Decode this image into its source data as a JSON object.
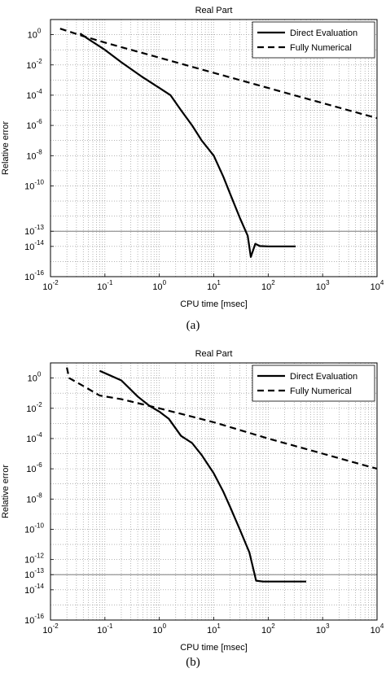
{
  "chart_data": [
    {
      "type": "line",
      "title": "Real Part",
      "xlabel": "CPU time [msec]",
      "ylabel": "Relative error",
      "xscale": "log",
      "yscale": "log",
      "xlim": [
        0.01,
        10000
      ],
      "ylim": [
        1e-16,
        10
      ],
      "grid": true,
      "legend_position": "top-right",
      "x_ticks": [
        {
          "value": 0.01,
          "base": "10",
          "exp": "-2"
        },
        {
          "value": 0.1,
          "base": "10",
          "exp": "-1"
        },
        {
          "value": 1,
          "base": "10",
          "exp": "0"
        },
        {
          "value": 10,
          "base": "10",
          "exp": "1"
        },
        {
          "value": 100,
          "base": "10",
          "exp": "2"
        },
        {
          "value": 1000,
          "base": "10",
          "exp": "3"
        },
        {
          "value": 10000,
          "base": "10",
          "exp": "4"
        }
      ],
      "y_ticks": [
        {
          "value": 1,
          "base": "10",
          "exp": "0"
        },
        {
          "value": 0.01,
          "base": "10",
          "exp": "-2"
        },
        {
          "value": 0.0001,
          "base": "10",
          "exp": "-4"
        },
        {
          "value": 1e-06,
          "base": "10",
          "exp": "-6"
        },
        {
          "value": 1e-08,
          "base": "10",
          "exp": "-8"
        },
        {
          "value": 1e-10,
          "base": "10",
          "exp": "-10"
        },
        {
          "value": 1e-13,
          "base": "10",
          "exp": "-13"
        },
        {
          "value": 1e-14,
          "base": "10",
          "exp": "-14"
        },
        {
          "value": 1e-16,
          "base": "10",
          "exp": "-16"
        }
      ],
      "reference_line": 1e-13,
      "caption": "(a)",
      "series": [
        {
          "name": "Direct Evaluation",
          "style": "solid",
          "points": [
            [
              0.035,
              1.2
            ],
            [
              0.05,
              0.5
            ],
            [
              0.1,
              0.1
            ],
            [
              0.2,
              0.015
            ],
            [
              0.5,
              0.0015
            ],
            [
              1,
              0.0003
            ],
            [
              1.6,
              0.0001
            ],
            [
              2.5,
              1e-05
            ],
            [
              4,
              1e-06
            ],
            [
              6,
              1e-07
            ],
            [
              10,
              1e-08
            ],
            [
              15,
              4e-10
            ],
            [
              20,
              3e-11
            ],
            [
              30,
              8e-13
            ],
            [
              42,
              5e-14
            ],
            [
              48,
              2e-15
            ],
            [
              58,
              1.5e-14
            ],
            [
              70,
              1.05e-14
            ],
            [
              100,
              1e-14
            ],
            [
              150,
              1e-14
            ],
            [
              200,
              1e-14
            ],
            [
              250,
              1e-14
            ],
            [
              320,
              1e-14
            ]
          ]
        },
        {
          "name": "Fully Numerical",
          "style": "dashed",
          "points": [
            [
              0.015,
              2.5
            ],
            [
              0.04,
              0.8
            ],
            [
              0.1,
              0.3
            ],
            [
              1,
              0.03
            ],
            [
              10,
              0.003
            ],
            [
              100,
              0.0003
            ],
            [
              1000,
              3e-05
            ],
            [
              10000,
              3e-06
            ]
          ]
        }
      ]
    },
    {
      "type": "line",
      "title": "Real Part",
      "xlabel": "CPU time [msec]",
      "ylabel": "Relative error",
      "xscale": "log",
      "yscale": "log",
      "xlim": [
        0.01,
        10000
      ],
      "ylim": [
        1e-16,
        10
      ],
      "grid": true,
      "legend_position": "top-right",
      "x_ticks": [
        {
          "value": 0.01,
          "base": "10",
          "exp": "-2"
        },
        {
          "value": 0.1,
          "base": "10",
          "exp": "-1"
        },
        {
          "value": 1,
          "base": "10",
          "exp": "0"
        },
        {
          "value": 10,
          "base": "10",
          "exp": "1"
        },
        {
          "value": 100,
          "base": "10",
          "exp": "2"
        },
        {
          "value": 1000,
          "base": "10",
          "exp": "3"
        },
        {
          "value": 10000,
          "base": "10",
          "exp": "4"
        }
      ],
      "y_ticks": [
        {
          "value": 1,
          "base": "10",
          "exp": "0"
        },
        {
          "value": 0.01,
          "base": "10",
          "exp": "-2"
        },
        {
          "value": 0.0001,
          "base": "10",
          "exp": "-4"
        },
        {
          "value": 1e-06,
          "base": "10",
          "exp": "-6"
        },
        {
          "value": 1e-08,
          "base": "10",
          "exp": "-8"
        },
        {
          "value": 1e-10,
          "base": "10",
          "exp": "-10"
        },
        {
          "value": 1e-12,
          "base": "10",
          "exp": "-12"
        },
        {
          "value": 1e-13,
          "base": "10",
          "exp": "-13"
        },
        {
          "value": 1e-14,
          "base": "10",
          "exp": "-14"
        },
        {
          "value": 1e-16,
          "base": "10",
          "exp": "-16"
        }
      ],
      "reference_line": 1e-13,
      "caption": "(b)",
      "series": [
        {
          "name": "Direct Evaluation",
          "style": "solid",
          "points": [
            [
              0.08,
              3
            ],
            [
              0.2,
              0.7
            ],
            [
              0.4,
              0.06
            ],
            [
              0.65,
              0.015
            ],
            [
              1,
              0.006
            ],
            [
              1.5,
              0.002
            ],
            [
              2.5,
              0.00015
            ],
            [
              4,
              5e-05
            ],
            [
              6,
              8e-06
            ],
            [
              10,
              5e-07
            ],
            [
              15,
              3e-08
            ],
            [
              20,
              3e-09
            ],
            [
              30,
              1e-10
            ],
            [
              45,
              3e-12
            ],
            [
              60,
              4e-14
            ],
            [
              80,
              3.5e-14
            ],
            [
              120,
              3.5e-14
            ],
            [
              200,
              3.5e-14
            ],
            [
              300,
              3.5e-14
            ],
            [
              500,
              3.5e-14
            ]
          ]
        },
        {
          "name": "Fully Numerical",
          "style": "dashed",
          "points": [
            [
              0.02,
              5
            ],
            [
              0.022,
              1
            ],
            [
              0.04,
              0.3
            ],
            [
              0.08,
              0.07
            ],
            [
              0.2,
              0.04
            ],
            [
              1,
              0.01
            ],
            [
              10,
              0.0012
            ],
            [
              100,
              0.0001
            ],
            [
              1000,
              1e-05
            ],
            [
              10000,
              1e-06
            ]
          ]
        }
      ]
    }
  ]
}
